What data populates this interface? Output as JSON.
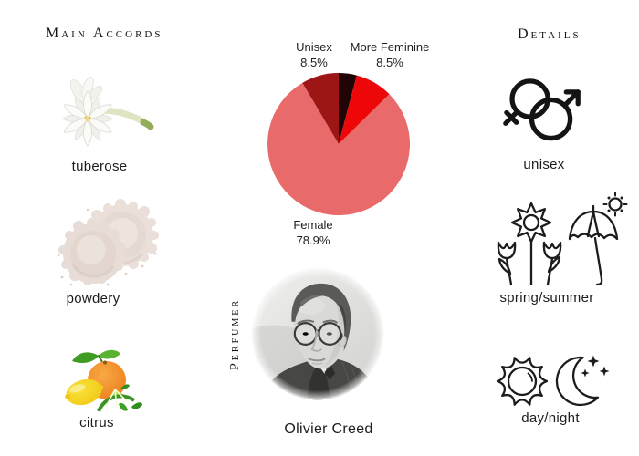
{
  "page": {
    "background": "#ffffff",
    "text_color": "#1c1c1c"
  },
  "main_accords": {
    "title": "Main Accords",
    "items": [
      {
        "label": "tuberose",
        "image": "tuberose-flower-photo"
      },
      {
        "label": "powdery",
        "image": "face-powder-swatches-photo"
      },
      {
        "label": "citrus",
        "image": "citrus-fruits-photo"
      }
    ]
  },
  "details": {
    "title": "Details",
    "items": [
      {
        "label": "unisex",
        "icon": "unisex-gender-symbol-icon"
      },
      {
        "label": "spring/summer",
        "icon": "flowers-umbrella-sun-icon"
      },
      {
        "label": "day/night",
        "icon": "sun-and-moon-icon"
      }
    ]
  },
  "perfumer": {
    "role_label": "Perfumer",
    "name": "Olivier Creed",
    "photo": "olivier-creed-black-and-white-portrait"
  },
  "chart_data": {
    "type": "pie",
    "title": "",
    "start_angle_deg": -90,
    "direction": "clockwise",
    "slices": [
      {
        "label": "",
        "value": 4.1,
        "color": "#200406"
      },
      {
        "label": "More Feminine",
        "value": 8.5,
        "color": "#ee0708"
      },
      {
        "label": "Female",
        "value": 78.9,
        "color": "#e96a6a"
      },
      {
        "label": "Unisex",
        "value": 8.5,
        "color": "#9e1515"
      }
    ],
    "callouts": [
      {
        "id": "unisex",
        "line1": "Unisex",
        "line2": "8.5%"
      },
      {
        "id": "more_feminine",
        "line1": "More Feminine",
        "line2": "8.5%"
      },
      {
        "id": "female",
        "line1": "Female",
        "line2": "78.9%"
      }
    ],
    "legend": "none",
    "grid": false
  }
}
